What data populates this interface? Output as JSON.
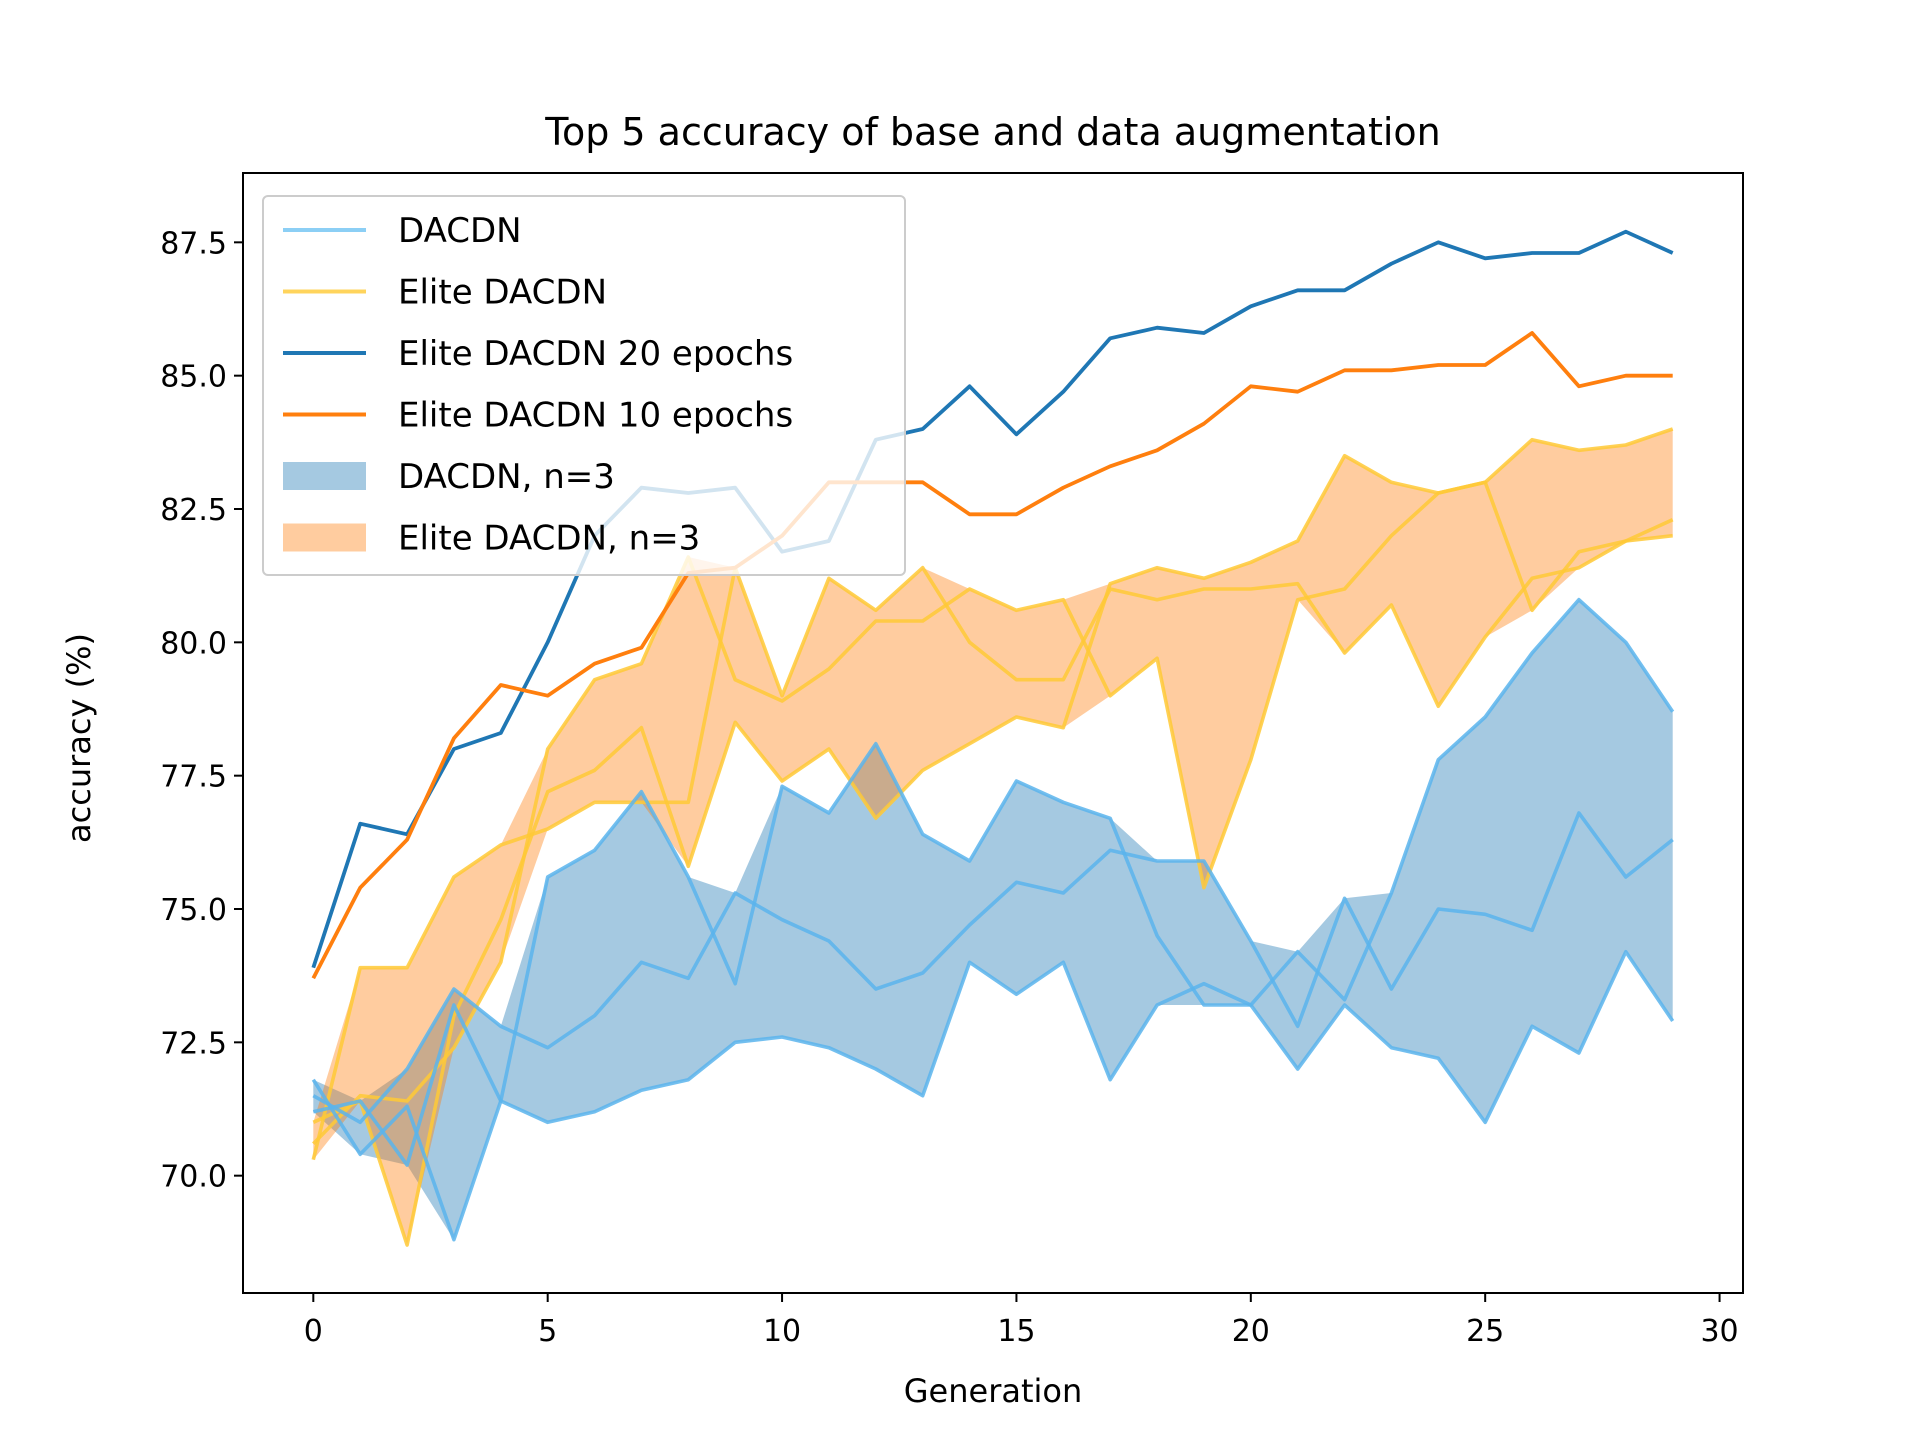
{
  "chart_data": {
    "type": "line",
    "title": "Top 5 accuracy of base and data augmentation",
    "xlabel": "Generation",
    "ylabel": "accuracy (%)",
    "xlim": [
      -1.5,
      30.5
    ],
    "ylim": [
      67.8,
      88.8
    ],
    "xticks": [
      "0",
      "5",
      "10",
      "15",
      "20",
      "25",
      "30"
    ],
    "yticks": [
      "70.0",
      "72.5",
      "75.0",
      "77.5",
      "80.0",
      "82.5",
      "85.0",
      "87.5"
    ],
    "legend_position": "top-left",
    "x": [
      0,
      1,
      2,
      3,
      4,
      5,
      6,
      7,
      8,
      9,
      10,
      11,
      12,
      13,
      14,
      15,
      16,
      17,
      18,
      19,
      20,
      21,
      22,
      23,
      24,
      25,
      26,
      27,
      28,
      29
    ],
    "series": [
      {
        "name": "Elite DACDN 20 epochs",
        "kind": "line",
        "color": "#1f77b4",
        "values": [
          73.9,
          76.6,
          76.4,
          78.0,
          78.3,
          80.0,
          82.0,
          82.9,
          82.8,
          82.9,
          81.7,
          81.9,
          83.8,
          84.0,
          84.8,
          83.9,
          84.7,
          85.7,
          85.9,
          85.8,
          86.3,
          86.6,
          86.6,
          87.1,
          87.5,
          87.2,
          87.3,
          87.3,
          87.7,
          87.3
        ]
      },
      {
        "name": "Elite DACDN 10 epochs",
        "kind": "line",
        "color": "#ff7f0e",
        "values": [
          73.7,
          75.4,
          76.3,
          78.2,
          79.2,
          79.0,
          79.6,
          79.9,
          81.3,
          81.4,
          82.0,
          83.0,
          83.0,
          83.0,
          82.4,
          82.4,
          82.9,
          83.3,
          83.6,
          84.1,
          84.8,
          84.7,
          85.1,
          85.1,
          85.2,
          85.2,
          85.8,
          84.8,
          85.0,
          85.0
        ]
      },
      {
        "name": "Elite DACDN",
        "kind": "runs",
        "color": "#ffc936",
        "runs": [
          [
            70.3,
            73.9,
            73.9,
            75.6,
            76.2,
            76.5,
            77.0,
            77.0,
            77.0,
            81.4,
            79.0,
            81.2,
            80.6,
            81.4,
            80.0,
            79.3,
            79.3,
            81.0,
            80.8,
            81.0,
            81.0,
            81.1,
            79.8,
            80.7,
            78.8,
            80.1,
            81.2,
            81.4,
            81.9,
            82.0
          ],
          [
            70.6,
            71.5,
            71.4,
            72.4,
            74.0,
            78.0,
            79.3,
            79.6,
            81.6,
            79.3,
            78.9,
            79.5,
            80.4,
            80.4,
            81.0,
            80.6,
            80.8,
            79.0,
            79.7,
            75.4,
            77.8,
            80.8,
            81.0,
            82.0,
            82.8,
            83.0,
            80.6,
            81.7,
            81.9,
            82.3
          ],
          [
            71.0,
            71.4,
            68.7,
            73.0,
            74.8,
            77.2,
            77.6,
            78.4,
            75.8,
            78.5,
            77.4,
            78.0,
            76.7,
            77.6,
            78.1,
            78.6,
            78.4,
            81.1,
            81.4,
            81.2,
            81.5,
            81.9,
            83.5,
            83.0,
            82.8,
            83.0,
            83.8,
            83.6,
            83.7,
            84.0
          ]
        ]
      },
      {
        "name": "DACDN",
        "kind": "runs",
        "color": "#5ab4ec",
        "runs": [
          [
            71.2,
            71.4,
            70.2,
            73.2,
            71.4,
            71.0,
            71.2,
            71.6,
            71.8,
            72.5,
            72.6,
            72.4,
            72.0,
            71.5,
            74.0,
            73.4,
            74.0,
            71.8,
            73.2,
            73.6,
            73.2,
            72.0,
            73.2,
            72.4,
            72.2,
            71.0,
            72.8,
            72.3,
            74.2,
            72.9
          ],
          [
            71.5,
            71.0,
            72.0,
            73.5,
            72.8,
            72.4,
            73.0,
            74.0,
            73.7,
            75.3,
            74.8,
            74.4,
            73.5,
            73.8,
            74.7,
            75.5,
            75.3,
            76.1,
            75.9,
            75.9,
            74.4,
            72.8,
            75.2,
            73.5,
            75.0,
            74.9,
            74.6,
            76.8,
            75.6,
            76.3
          ],
          [
            71.8,
            70.4,
            71.3,
            68.8,
            71.4,
            75.6,
            76.1,
            77.2,
            75.6,
            73.6,
            77.3,
            76.8,
            78.1,
            76.4,
            75.9,
            77.4,
            77.0,
            76.7,
            74.5,
            73.2,
            73.2,
            74.2,
            73.3,
            75.3,
            77.8,
            78.6,
            79.8,
            80.8,
            80.0,
            78.7
          ]
        ]
      }
    ],
    "bands": [
      {
        "name": "DACDN, n=3",
        "of": "DACDN",
        "color": "#1f77b4",
        "alpha": 0.4
      },
      {
        "name": "Elite DACDN, n=3",
        "of": "Elite DACDN",
        "color": "#ff7f0e",
        "alpha": 0.4
      }
    ],
    "legend": [
      {
        "label": "DACDN",
        "type": "line",
        "color": "#8ccff5"
      },
      {
        "label": "Elite DACDN",
        "type": "line",
        "color": "#ffd45c"
      },
      {
        "label": "Elite DACDN 20 epochs",
        "type": "line",
        "color": "#1f77b4"
      },
      {
        "label": "Elite DACDN 10 epochs",
        "type": "line",
        "color": "#ff7f0e"
      },
      {
        "label": "DACDN, n=3",
        "type": "patch",
        "color": "#1f77b4",
        "alpha": 0.4
      },
      {
        "label": "Elite DACDN, n=3",
        "type": "patch",
        "color": "#ff7f0e",
        "alpha": 0.4
      }
    ]
  }
}
